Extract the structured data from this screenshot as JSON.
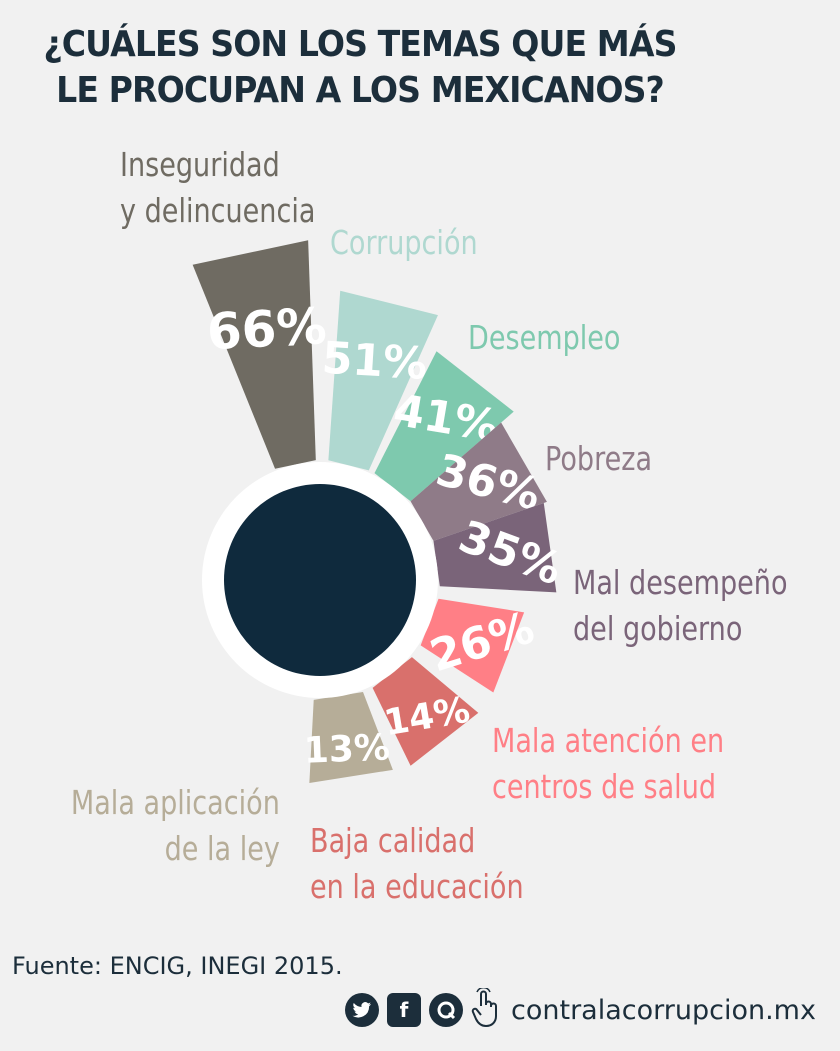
{
  "title": {
    "line1": "¿CUÁLES SON LOS TEMAS QUE MÁS",
    "line2": "LE PROCUPAN A LOS MEXICANOS?"
  },
  "chart_data": {
    "type": "bar",
    "categories": [
      "Inseguridad y delincuencia",
      "Corrupción",
      "Desempleo",
      "Pobreza",
      "Mal desempeño del gobierno",
      "Mala atención en centros de salud",
      "Baja calidad en la educación",
      "Mala aplicación de la ley"
    ],
    "values": [
      66,
      51,
      41,
      36,
      35,
      26,
      14,
      13
    ],
    "value_labels": [
      "66%",
      "51%",
      "41%",
      "36%",
      "35%",
      "26%",
      "14%",
      "13%"
    ],
    "label_lines": [
      [
        "Inseguridad",
        "y delincuencia"
      ],
      [
        "Corrupción"
      ],
      [
        "Desempleo"
      ],
      [
        "Pobreza"
      ],
      [
        "Mal desempeño",
        "del gobierno"
      ],
      [
        "Mala atención en",
        "centros de salud"
      ],
      [
        "Baja calidad",
        "en la educación"
      ],
      [
        "Mala aplicación",
        "de la ley"
      ]
    ],
    "colors": [
      "#6f6b62",
      "#afd8d0",
      "#7ec9ae",
      "#8f7b88",
      "#7a6479",
      "#ff7f86",
      "#d9706c",
      "#b6ad98"
    ],
    "label_colors": [
      "#6f6b62",
      "#afd8d0",
      "#7ec9ae",
      "#8f7b88",
      "#7a6479",
      "#ff7f86",
      "#d9706c",
      "#b6ad98"
    ],
    "center_color": "#0f2a3d"
  },
  "source": "Fuente: ENCIG, INEGI 2015.",
  "footer": {
    "site": "contralacorrupcion.mx",
    "icons": [
      "twitter-icon",
      "facebook-icon",
      "quote-icon",
      "pointer-hand-icon"
    ]
  }
}
